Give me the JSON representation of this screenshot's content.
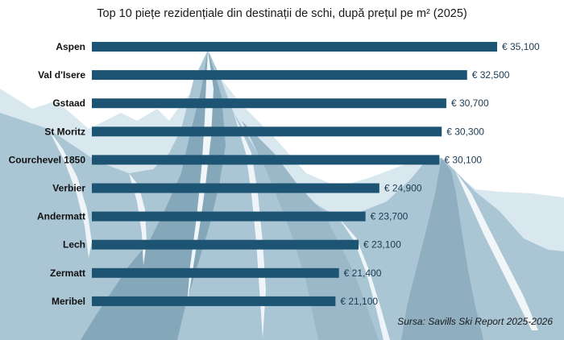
{
  "title": "Top 10 piețe rezidențiale din destinații de schi, după prețul pe m² (2025)",
  "source": "Sursa: Savills Ski Report 2025-2026",
  "colors": {
    "bar": "#1d5373",
    "mountain_light": "#d3e3ec",
    "mountain_mid": "#a9c4d3",
    "mountain_dark": "#7c9fb3",
    "snow": "#f4f8fb"
  },
  "chart_data": {
    "type": "bar",
    "orientation": "horizontal",
    "title": "Top 10 piețe rezidențiale din destinații de schi, după prețul pe m² (2025)",
    "categories": [
      "Aspen",
      "Val d'Isere",
      "Gstaad",
      "St Moritz",
      "Courchevel 1850",
      "Verbier",
      "Andermatt",
      "Lech",
      "Zermatt",
      "Meribel"
    ],
    "values": [
      35100,
      32500,
      30700,
      30300,
      30100,
      24900,
      23700,
      23100,
      21400,
      21100
    ],
    "value_labels": [
      "€ 35,100",
      "€ 32,500",
      "€ 30,700",
      "€ 30,300",
      "€ 30,100",
      "€ 24,900",
      "€ 23,700",
      "€ 23,100",
      "€ 21,400",
      "€ 21,100"
    ],
    "xlim": [
      0,
      35100
    ],
    "grid": false,
    "legend": "none"
  }
}
